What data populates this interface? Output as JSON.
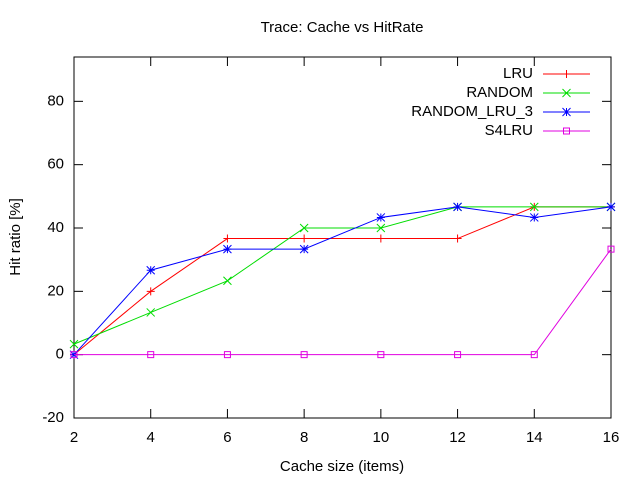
{
  "chart_data": {
    "type": "line",
    "title": "Trace: Cache vs HitRate",
    "x_label": "Cache size (items)",
    "y_label": "Hit ratio [%]",
    "x": [
      2,
      4,
      6,
      8,
      10,
      12,
      14,
      16
    ],
    "series": [
      {
        "name": "LRU",
        "color": "#ff0000",
        "marker": "plus",
        "values": [
          0,
          20,
          36.67,
          36.67,
          36.67,
          36.67,
          46.67,
          46.67
        ]
      },
      {
        "name": "RANDOM",
        "color": "#00dd00",
        "marker": "cross",
        "values": [
          3.33,
          13.33,
          23.33,
          40,
          40,
          46.67,
          46.67,
          46.67
        ]
      },
      {
        "name": "RANDOM_LRU_3",
        "color": "#0000ff",
        "marker": "star",
        "values": [
          0,
          26.67,
          33.33,
          33.33,
          43.33,
          46.67,
          43.33,
          46.67
        ]
      },
      {
        "name": "S4LRU",
        "color": "#e000e0",
        "marker": "square",
        "values": [
          0,
          0,
          0,
          0,
          0,
          0,
          0,
          33.33
        ]
      }
    ],
    "xlim": [
      2,
      16
    ],
    "xticks": [
      2,
      4,
      6,
      8,
      10,
      12,
      14,
      16
    ],
    "ylim": [
      -20,
      94
    ],
    "yticks": [
      -20,
      0,
      20,
      40,
      60,
      80
    ],
    "grid": false,
    "legend": "top-right"
  }
}
